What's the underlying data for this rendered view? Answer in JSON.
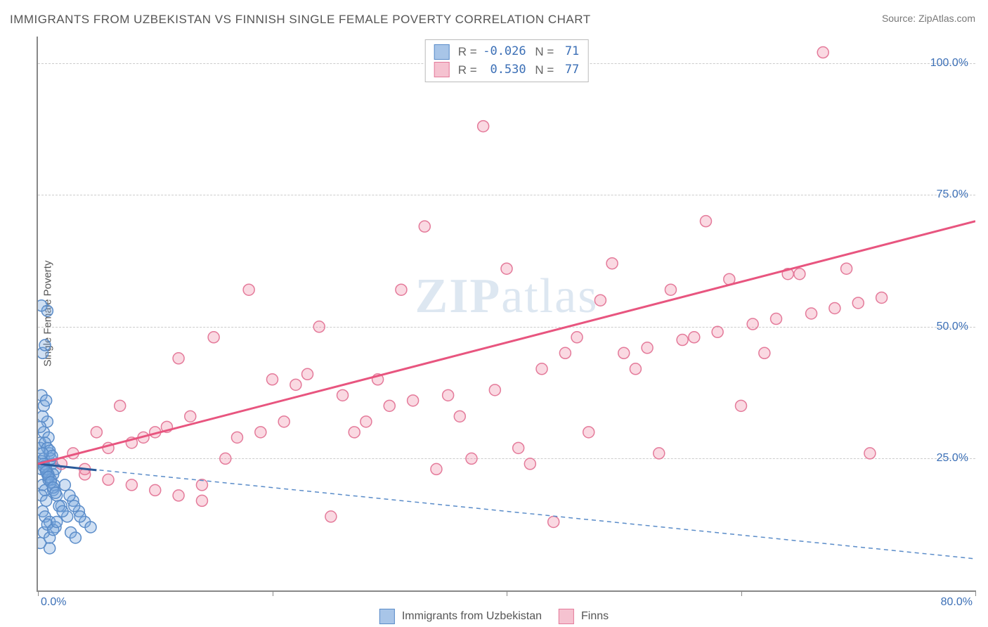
{
  "title": "IMMIGRANTS FROM UZBEKISTAN VS FINNISH SINGLE FEMALE POVERTY CORRELATION CHART",
  "source_label": "Source:",
  "source_name": "ZipAtlas.com",
  "watermark": {
    "bold": "ZIP",
    "light": "atlas"
  },
  "chart": {
    "type": "scatter",
    "background_color": "#ffffff",
    "grid_color": "#cccccc",
    "axis_color": "#888888",
    "label_color": "#3b6fb6",
    "xlim": [
      0,
      80
    ],
    "ylim": [
      0,
      105
    ],
    "xticks": [
      0,
      20,
      40,
      60,
      80
    ],
    "xtick_labels": [
      "0.0%",
      "",
      "",
      "",
      "80.0%"
    ],
    "yticks": [
      25,
      50,
      75,
      100
    ],
    "ytick_labels": [
      "25.0%",
      "50.0%",
      "75.0%",
      "100.0%"
    ],
    "yaxis_title": "Single Female Poverty",
    "marker_radius": 8,
    "marker_stroke_width": 1.5,
    "trendline_width": 3,
    "series": [
      {
        "name": "Immigrants from Uzbekistan",
        "fill_color": "rgba(120, 165, 220, 0.35)",
        "stroke_color": "#5a8cc9",
        "legend_fill": "#a8c5e8",
        "legend_stroke": "#5a8cc9",
        "R": "-0.026",
        "N": "71",
        "trendline": {
          "x1": 0,
          "y1": 24,
          "x2": 80,
          "y2": 6,
          "dash": "6,5",
          "color": "#5a8cc9",
          "width": 1.5
        },
        "solid_segment": {
          "x1": 0,
          "y1": 24,
          "x2": 5,
          "y2": 22.8,
          "color": "#2a5a9a",
          "width": 3
        },
        "points": [
          [
            0.3,
            23
          ],
          [
            0.5,
            25
          ],
          [
            0.8,
            22
          ],
          [
            1.0,
            26
          ],
          [
            0.4,
            20
          ],
          [
            0.6,
            19
          ],
          [
            1.2,
            24
          ],
          [
            0.2,
            28
          ],
          [
            0.9,
            21
          ],
          [
            1.5,
            23
          ],
          [
            0.3,
            18
          ],
          [
            0.7,
            17
          ],
          [
            1.1,
            25
          ],
          [
            0.5,
            30
          ],
          [
            0.8,
            32
          ],
          [
            1.3,
            22
          ],
          [
            0.4,
            15
          ],
          [
            0.6,
            14
          ],
          [
            1.0,
            13
          ],
          [
            0.2,
            27
          ],
          [
            0.9,
            29
          ],
          [
            1.4,
            20
          ],
          [
            0.5,
            35
          ],
          [
            0.3,
            37
          ],
          [
            0.7,
            36
          ],
          [
            1.0,
            8
          ],
          [
            1.5,
            12
          ],
          [
            2.0,
            16
          ],
          [
            0.4,
            45
          ],
          [
            0.6,
            46.5
          ],
          [
            0.8,
            53
          ],
          [
            0.3,
            54
          ],
          [
            2.5,
            14
          ],
          [
            3.0,
            17
          ],
          [
            3.5,
            15
          ],
          [
            4.0,
            13
          ],
          [
            4.5,
            12
          ],
          [
            2.8,
            11
          ],
          [
            3.2,
            10
          ],
          [
            0.5,
            24
          ],
          [
            0.7,
            23
          ],
          [
            0.9,
            22
          ],
          [
            1.1,
            21
          ],
          [
            1.3,
            19
          ],
          [
            1.6,
            18
          ],
          [
            1.8,
            16
          ],
          [
            2.1,
            15
          ],
          [
            0.2,
            31
          ],
          [
            0.4,
            33
          ],
          [
            0.6,
            28
          ],
          [
            0.8,
            27
          ],
          [
            1.0,
            26.5
          ],
          [
            1.2,
            25.5
          ],
          [
            0.3,
            24.5
          ],
          [
            0.5,
            23.5
          ],
          [
            0.7,
            22.5
          ],
          [
            0.9,
            21.5
          ],
          [
            1.1,
            20.5
          ],
          [
            1.3,
            19.5
          ],
          [
            1.5,
            18.5
          ],
          [
            0.4,
            26
          ],
          [
            2.3,
            20
          ],
          [
            2.7,
            18
          ],
          [
            3.1,
            16
          ],
          [
            3.6,
            14
          ],
          [
            0.2,
            9
          ],
          [
            0.5,
            11
          ],
          [
            0.8,
            12.5
          ],
          [
            1.0,
            10
          ],
          [
            1.3,
            11.5
          ],
          [
            1.6,
            13
          ]
        ]
      },
      {
        "name": "Finns",
        "fill_color": "rgba(240, 130, 160, 0.3)",
        "stroke_color": "#e47a9a",
        "legend_fill": "#f5c2d0",
        "legend_stroke": "#e47a9a",
        "R": "0.530",
        "N": "77",
        "trendline": {
          "x1": 0,
          "y1": 24,
          "x2": 80,
          "y2": 70,
          "dash": "none",
          "color": "#e8557f",
          "width": 3
        },
        "points": [
          [
            2,
            24
          ],
          [
            3,
            26
          ],
          [
            4,
            23
          ],
          [
            5,
            30
          ],
          [
            6,
            27
          ],
          [
            7,
            35
          ],
          [
            8,
            28
          ],
          [
            9,
            29
          ],
          [
            10,
            30
          ],
          [
            11,
            31
          ],
          [
            12,
            44
          ],
          [
            13,
            33
          ],
          [
            14,
            20
          ],
          [
            15,
            48
          ],
          [
            16,
            25
          ],
          [
            17,
            29
          ],
          [
            18,
            57
          ],
          [
            19,
            30
          ],
          [
            20,
            40
          ],
          [
            21,
            32
          ],
          [
            22,
            39
          ],
          [
            23,
            41
          ],
          [
            24,
            50
          ],
          [
            25,
            14
          ],
          [
            26,
            37
          ],
          [
            27,
            30
          ],
          [
            28,
            32
          ],
          [
            29,
            40
          ],
          [
            30,
            35
          ],
          [
            31,
            57
          ],
          [
            32,
            36
          ],
          [
            33,
            69
          ],
          [
            34,
            23
          ],
          [
            35,
            37
          ],
          [
            36,
            33
          ],
          [
            37,
            25
          ],
          [
            38,
            88
          ],
          [
            39,
            38
          ],
          [
            40,
            61
          ],
          [
            41,
            27
          ],
          [
            42,
            24
          ],
          [
            43,
            42
          ],
          [
            44,
            13
          ],
          [
            45,
            45
          ],
          [
            46,
            48
          ],
          [
            47,
            30
          ],
          [
            48,
            55
          ],
          [
            49,
            62
          ],
          [
            50,
            45
          ],
          [
            51,
            42
          ],
          [
            52,
            46
          ],
          [
            53,
            26
          ],
          [
            54,
            57
          ],
          [
            55,
            47.5
          ],
          [
            56,
            48
          ],
          [
            57,
            70
          ],
          [
            58,
            49
          ],
          [
            59,
            59
          ],
          [
            60,
            35
          ],
          [
            61,
            50.5
          ],
          [
            62,
            45
          ],
          [
            63,
            51.5
          ],
          [
            64,
            60
          ],
          [
            65,
            60
          ],
          [
            66,
            52.5
          ],
          [
            67,
            102
          ],
          [
            68,
            53.5
          ],
          [
            69,
            61
          ],
          [
            70,
            54.5
          ],
          [
            71,
            26
          ],
          [
            72,
            55.5
          ],
          [
            4,
            22
          ],
          [
            6,
            21
          ],
          [
            8,
            20
          ],
          [
            10,
            19
          ],
          [
            12,
            18
          ],
          [
            14,
            17
          ]
        ]
      }
    ],
    "legend_bottom": [
      {
        "label": "Immigrants from Uzbekistan",
        "series": 0
      },
      {
        "label": "Finns",
        "series": 1
      }
    ]
  }
}
